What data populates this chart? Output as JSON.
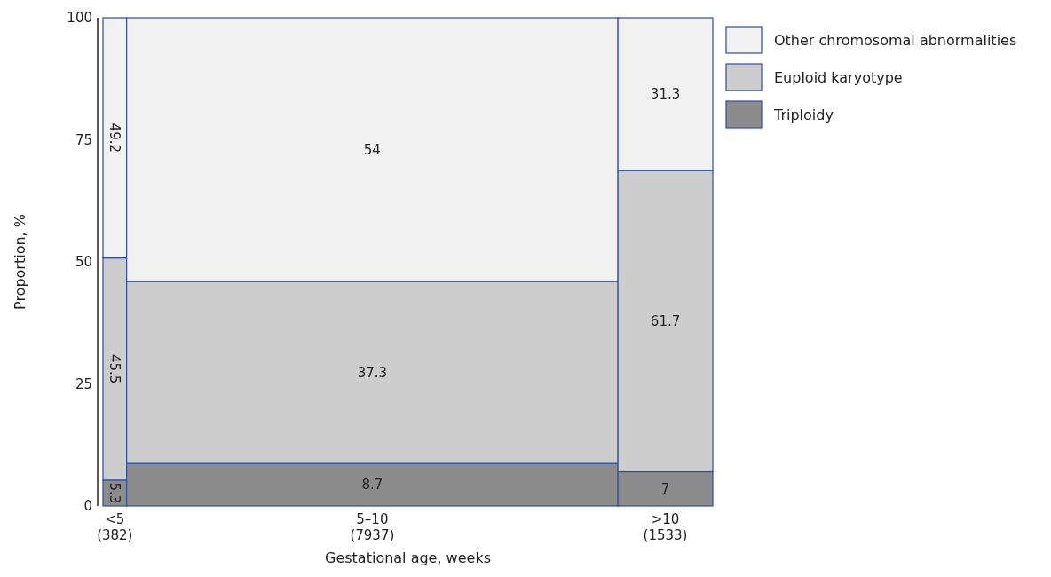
{
  "chart_data": {
    "type": "bar",
    "stacked": true,
    "xlabel": "Gestational age, weeks",
    "ylabel": "Proportion, %",
    "categories": [
      "<5\n(382)",
      "5–10\n(7937)",
      ">10\n(1533)"
    ],
    "series": [
      {
        "name": "Triploidy",
        "color": "#8c8c8c",
        "values": [
          5.3,
          8.7,
          7
        ]
      },
      {
        "name": "Euploid karyotype",
        "color": "#cdcdcd",
        "values": [
          45.5,
          37.3,
          61.7
        ]
      },
      {
        "name": "Other chromosomal abnormalities",
        "color": "#f1f1f1",
        "values": [
          49.2,
          54,
          31.3
        ]
      }
    ],
    "ylim": [
      0,
      100
    ],
    "yticks": [
      0,
      25,
      50,
      75,
      100
    ],
    "data_labels": true,
    "legend": "right",
    "grid": false
  }
}
